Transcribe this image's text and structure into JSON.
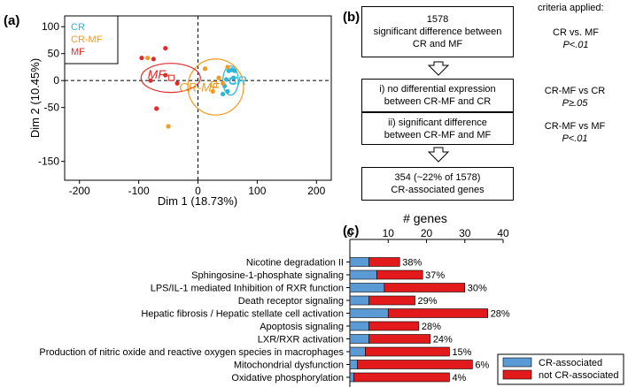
{
  "panel_labels": {
    "a": "(a)",
    "b": "(b)",
    "c": "(c)"
  },
  "pca": {
    "type": "scatter",
    "xlabel": "Dim 1 (18.73%)",
    "ylabel": "Dim 2 (10.45%)",
    "xlim": [
      -225,
      225
    ],
    "ylim": [
      -185,
      120
    ],
    "xticks": [
      -200,
      -100,
      0,
      100,
      200
    ],
    "yticks": [
      -150,
      -50,
      0,
      50,
      100
    ],
    "legend": [
      {
        "label": "CR",
        "color": "#29b6d9"
      },
      {
        "label": "CR-MF",
        "color": "#f29b22"
      },
      {
        "label": "MF",
        "color": "#e02b2b"
      }
    ],
    "group_labels": [
      {
        "label": "CR",
        "x": 67,
        "y": 0,
        "color": "#29b6d9"
      },
      {
        "label": "CR-MF",
        "x": 2,
        "y": -12,
        "color": "#f29b22"
      },
      {
        "label": "MF",
        "x": -70,
        "y": 12,
        "color": "#e02b2b"
      }
    ],
    "ellipses": [
      {
        "group": "CR",
        "cx": 55,
        "cy": 0,
        "rx": 13,
        "ry": 27,
        "color": "#29b6d9"
      },
      {
        "group": "CR-MF",
        "cx": 30,
        "cy": -12,
        "rx": 47,
        "ry": 52,
        "color": "#f29b22"
      },
      {
        "group": "MF",
        "cx": -46,
        "cy": 5,
        "rx": 50,
        "ry": 27,
        "color": "#e02b2b"
      }
    ],
    "centroids": [
      {
        "group": "CR",
        "x": 58,
        "y": 0,
        "color": "#29b6d9"
      },
      {
        "group": "CR-MF",
        "x": 27,
        "y": -7,
        "color": "#f29b22"
      },
      {
        "group": "MF",
        "x": -45,
        "y": 5,
        "color": "#e02b2b"
      }
    ],
    "points": [
      {
        "group": "CR",
        "x": 52,
        "y": 18,
        "color": "#29b6d9"
      },
      {
        "group": "CR",
        "x": 57,
        "y": 20,
        "color": "#29b6d9"
      },
      {
        "group": "CR",
        "x": 62,
        "y": 18,
        "color": "#29b6d9"
      },
      {
        "group": "CR",
        "x": 60,
        "y": 5,
        "color": "#29b6d9"
      },
      {
        "group": "CR",
        "x": 48,
        "y": 2,
        "color": "#29b6d9"
      },
      {
        "group": "CR",
        "x": 45,
        "y": -10,
        "color": "#29b6d9"
      },
      {
        "group": "CR",
        "x": 42,
        "y": -25,
        "color": "#29b6d9"
      },
      {
        "group": "CR",
        "x": 50,
        "y": -20,
        "color": "#29b6d9"
      },
      {
        "group": "CR-MF",
        "x": -85,
        "y": 42,
        "color": "#f29b22"
      },
      {
        "group": "CR-MF",
        "x": 12,
        "y": 22,
        "color": "#f29b22"
      },
      {
        "group": "CR-MF",
        "x": 50,
        "y": 25,
        "color": "#f29b22"
      },
      {
        "group": "CR-MF",
        "x": 35,
        "y": 5,
        "color": "#f29b22"
      },
      {
        "group": "CR-MF",
        "x": 42,
        "y": -5,
        "color": "#f29b22"
      },
      {
        "group": "CR-MF",
        "x": 25,
        "y": -20,
        "color": "#f29b22"
      },
      {
        "group": "CR-MF",
        "x": -50,
        "y": -85,
        "color": "#f29b22"
      },
      {
        "group": "MF",
        "x": -95,
        "y": 42,
        "color": "#e02b2b"
      },
      {
        "group": "MF",
        "x": -75,
        "y": 40,
        "color": "#e02b2b"
      },
      {
        "group": "MF",
        "x": -55,
        "y": 60,
        "color": "#e02b2b"
      },
      {
        "group": "MF",
        "x": -55,
        "y": 10,
        "color": "#e02b2b"
      },
      {
        "group": "MF",
        "x": -80,
        "y": 0,
        "color": "#e02b2b"
      },
      {
        "group": "MF",
        "x": -35,
        "y": -5,
        "color": "#e02b2b"
      },
      {
        "group": "MF",
        "x": -70,
        "y": -52,
        "color": "#e02b2b"
      }
    ]
  },
  "flowchart": {
    "criteria_heading": "criteria applied:",
    "boxes": [
      {
        "lines": [
          "1578",
          "significant difference between",
          "CR and MF"
        ]
      },
      {
        "lines": [
          "i) no differential expression",
          "between CR-MF and CR"
        ]
      },
      {
        "lines": [
          "ii) significant difference",
          "between CR-MF and MF"
        ]
      },
      {
        "lines": [
          "354 (~22% of 1578)",
          "CR-associated genes"
        ]
      }
    ],
    "criteria": [
      {
        "comparison": "CR vs. MF",
        "threshold": "P<.01"
      },
      {
        "comparison": "CR-MF vs CR",
        "threshold": "P≥.05"
      },
      {
        "comparison": "CR-MF vs MF",
        "threshold": "P<.01"
      }
    ]
  },
  "chart_data": {
    "type": "bar",
    "orientation": "horizontal",
    "stacked": true,
    "title": "# genes",
    "xlim": [
      0,
      40
    ],
    "xticks": [
      0,
      10,
      20,
      30,
      40
    ],
    "categories": [
      "Nicotine degradation II",
      "Sphingosine-1-phosphate signaling",
      "LPS/IL-1 mediated Inhibition of RXR function",
      "Death receptor signaling",
      "Hepatic fibrosis / Hepatic stellate cell activation",
      "Apoptosis signaling",
      "LXR/RXR activation",
      "Production of nitric oxide and reactive oxygen species in macrophages",
      "Mitochondrial dysfunction",
      "Oxidative phosphorylation"
    ],
    "series": [
      {
        "name": "CR-associated",
        "color": "#5b9bd5",
        "values": [
          5,
          7,
          9,
          5,
          10,
          5,
          5,
          4,
          2,
          1
        ]
      },
      {
        "name": "not CR-associated",
        "color": "#e31a1c",
        "values": [
          8,
          12,
          21,
          12,
          26,
          13,
          16,
          22,
          30,
          25
        ]
      }
    ],
    "data_labels": [
      "38%",
      "37%",
      "30%",
      "29%",
      "28%",
      "28%",
      "24%",
      "15%",
      "6%",
      "4%"
    ],
    "legend_position": "bottom-right"
  }
}
